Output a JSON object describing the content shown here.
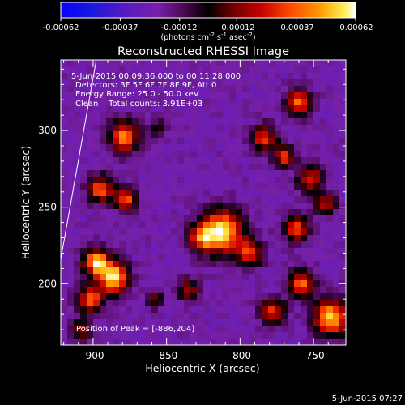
{
  "chart_data": {
    "type": "heatmap",
    "title": "Reconstructed RHESSI Image",
    "xlabel": "Heliocentric X (arcsec)",
    "ylabel": "Heliocentric Y (arcsec)",
    "xlim": [
      -922,
      -728
    ],
    "ylim": [
      160,
      346
    ],
    "xticks": [
      -900,
      -850,
      -800,
      -750
    ],
    "xtick_labels": [
      "-900",
      "-850",
      "-800",
      "-750"
    ],
    "yticks": [
      200,
      250,
      300
    ],
    "ytick_labels": [
      "200",
      "250",
      "300"
    ],
    "colorbar": {
      "range": [
        -0.00062,
        0.00062
      ],
      "ticks": [
        -0.00062,
        -0.00037,
        -0.00012,
        0.00012,
        0.00037,
        0.00062
      ],
      "tick_labels": [
        "-0.00062",
        "-0.00037",
        "-0.00012",
        "0.00012",
        "0.00037",
        "0.00062"
      ],
      "label": "(photons cm",
      "label_exp1": "-2",
      "label_mid": " s",
      "label_exp2": "-1",
      "label_mid2": " asec",
      "label_exp3": "-2",
      "label_end": ")"
    },
    "annotations": [
      "5-Jun-2015 00:09:36.000 to 00:11:28.000",
      "Detectors: 3F 5F 6F 7F 8F 9F, Att 0",
      "Energy Range: 25.0 - 50.0 keV",
      "Clean    Total counts: 3.91E+03"
    ],
    "peak_label": "Position of Peak = [-886,204]",
    "limb_line": {
      "x": [
        -922,
        -898
      ],
      "y": [
        216,
        345
      ]
    },
    "background_level": 0.36,
    "sources": [
      {
        "x": -879,
        "y": 296,
        "sigma": 7,
        "amplitude": 0.78
      },
      {
        "x": -895,
        "y": 262,
        "sigma": 6,
        "amplitude": 0.72
      },
      {
        "x": -878,
        "y": 255,
        "sigma": 5,
        "amplitude": 0.7
      },
      {
        "x": -898,
        "y": 214,
        "sigma": 6,
        "amplitude": 0.9
      },
      {
        "x": -886,
        "y": 204,
        "sigma": 7,
        "amplitude": 1.0
      },
      {
        "x": -902,
        "y": 190,
        "sigma": 6,
        "amplitude": 0.7
      },
      {
        "x": -812,
        "y": 234,
        "sigma": 10,
        "amplitude": 0.95
      },
      {
        "x": -826,
        "y": 230,
        "sigma": 6,
        "amplitude": 0.6
      },
      {
        "x": -793,
        "y": 220,
        "sigma": 6,
        "amplitude": 0.6
      },
      {
        "x": -760,
        "y": 318,
        "sigma": 6,
        "amplitude": 0.72
      },
      {
        "x": -784,
        "y": 295,
        "sigma": 6,
        "amplitude": 0.64
      },
      {
        "x": -770,
        "y": 283,
        "sigma": 5,
        "amplitude": 0.62
      },
      {
        "x": -752,
        "y": 268,
        "sigma": 6,
        "amplitude": 0.6
      },
      {
        "x": -762,
        "y": 236,
        "sigma": 6,
        "amplitude": 0.64
      },
      {
        "x": -742,
        "y": 252,
        "sigma": 5,
        "amplitude": 0.55
      },
      {
        "x": -738,
        "y": 178,
        "sigma": 8,
        "amplitude": 0.92
      },
      {
        "x": -758,
        "y": 200,
        "sigma": 6,
        "amplitude": 0.72
      },
      {
        "x": -778,
        "y": 182,
        "sigma": 6,
        "amplitude": 0.6
      },
      {
        "x": -835,
        "y": 196,
        "sigma": 5,
        "amplitude": 0.5
      },
      {
        "x": -858,
        "y": 190,
        "sigma": 4,
        "amplitude": 0.38
      },
      {
        "x": -908,
        "y": 170,
        "sigma": 5,
        "amplitude": 0.45
      },
      {
        "x": -856,
        "y": 302,
        "sigma": 4,
        "amplitude": 0.3
      }
    ]
  },
  "footer": {
    "timestamp": "5-Jun-2015 07:27"
  }
}
